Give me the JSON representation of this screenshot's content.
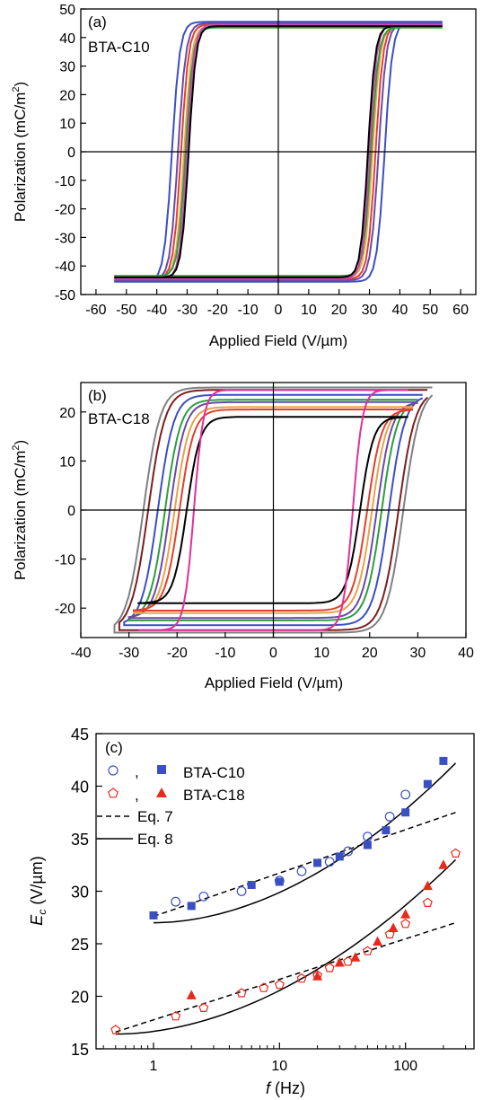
{
  "chart_data": [
    {
      "type": "line",
      "panel_label": "(a)",
      "sample": "BTA-C10",
      "xlabel": "Applied Field (V/µm)",
      "ylabel_main": "Polarization (mC/m",
      "ylabel_sup": "2",
      "ylabel_close": ")",
      "xlim": [
        -65,
        65
      ],
      "ylim": [
        -50,
        50
      ],
      "xticks": [
        -60,
        -50,
        -40,
        -30,
        -20,
        -10,
        0,
        10,
        20,
        30,
        40,
        50,
        60
      ],
      "yticks": [
        -50,
        -40,
        -30,
        -20,
        -10,
        0,
        10,
        20,
        30,
        40,
        50
      ],
      "loops": [
        {
          "color": "#3a4fc2",
          "Ec": 35,
          "Ps": 45.5,
          "w": 2.6,
          "Emax": 54
        },
        {
          "color": "#6a4aa5",
          "Ec": 33,
          "Ps": 45.0,
          "w": 2.6,
          "Emax": 54
        },
        {
          "color": "#e0402f",
          "Ec": 32,
          "Ps": 44.5,
          "w": 2.5,
          "Emax": 54
        },
        {
          "color": "#e8a34a",
          "Ec": 31,
          "Ps": 44.0,
          "w": 2.5,
          "Emax": 54
        },
        {
          "color": "#2e9d3f",
          "Ec": 30.5,
          "Ps": 43.5,
          "w": 2.5,
          "Emax": 54
        },
        {
          "color": "#c94ab0",
          "Ec": 30,
          "Ps": 44.5,
          "w": 2.4,
          "Emax": 54
        },
        {
          "color": "#000000",
          "Ec": 29.5,
          "Ps": 44.0,
          "w": 2.4,
          "Emax": 54
        }
      ]
    },
    {
      "type": "line",
      "panel_label": "(b)",
      "sample": "BTA-C18",
      "xlabel": "Applied Field (V/µm)",
      "ylabel_main": "Polarization (mC/m",
      "ylabel_sup": "2",
      "ylabel_close": ")",
      "xlim": [
        -40,
        40
      ],
      "ylim": [
        -26,
        26
      ],
      "xticks": [
        -40,
        -30,
        -20,
        -10,
        0,
        10,
        20,
        30,
        40
      ],
      "yticks": [
        -20,
        -10,
        0,
        10,
        20
      ],
      "loops": [
        {
          "color": "#808080",
          "Ec": 27,
          "Ps": 25.0,
          "w": 3.5,
          "Emax": 33
        },
        {
          "color": "#7a1f1f",
          "Ec": 26,
          "Ps": 24.5,
          "w": 3.5,
          "Emax": 32
        },
        {
          "color": "#3a4fc2",
          "Ec": 24,
          "Ps": 23.5,
          "w": 3.3,
          "Emax": 31
        },
        {
          "color": "#2e9d3f",
          "Ec": 22.5,
          "Ps": 22.5,
          "w": 3.2,
          "Emax": 30
        },
        {
          "color": "#6a4aa5",
          "Ec": 21.5,
          "Ps": 22.0,
          "w": 3.1,
          "Emax": 30
        },
        {
          "color": "#e8a34a",
          "Ec": 20.5,
          "Ps": 21.0,
          "w": 3.0,
          "Emax": 29
        },
        {
          "color": "#e0402f",
          "Ec": 19.5,
          "Ps": 20.5,
          "w": 3.0,
          "Emax": 29
        },
        {
          "color": "#000000",
          "Ec": 18,
          "Ps": 19.0,
          "w": 2.8,
          "Emax": 28
        },
        {
          "color": "#e0309a",
          "Ec": 16.5,
          "Ps": 24.5,
          "w": 2.0,
          "Emax": 28
        }
      ]
    },
    {
      "type": "scatter",
      "panel_label": "(c)",
      "xlabel_italic": "f",
      "xlabel_rest": " (Hz)",
      "ylabel_italic": "E",
      "ylabel_sub": "c",
      "ylabel_rest": " (V/µm)",
      "xscale": "log",
      "xlim": [
        0.35,
        350
      ],
      "ylim": [
        15,
        45
      ],
      "xticks": [
        1,
        10,
        100
      ],
      "xtick_labels": [
        "1",
        "10",
        "100"
      ],
      "yticks": [
        15,
        20,
        25,
        30,
        35,
        40,
        45
      ],
      "legend": {
        "sep": ",",
        "c10_label": "BTA-C10",
        "c18_label": "BTA-C18",
        "eq7_label": "Eq. 7",
        "eq8_label": "Eq. 8"
      },
      "series": [
        {
          "name": "BTA-C10",
          "marker": "square-filled",
          "color": "#3a4fc2",
          "x": [
            1,
            2,
            6,
            10,
            20,
            30,
            50,
            70,
            100,
            150,
            200
          ],
          "y": [
            27.7,
            28.6,
            30.6,
            30.9,
            32.7,
            33.3,
            34.4,
            35.8,
            37.5,
            40.2,
            42.4
          ]
        },
        {
          "name": "BTA-C10",
          "marker": "circle-open",
          "color": "#3a4fc2",
          "x": [
            1.5,
            2.5,
            5,
            10,
            15,
            25,
            35,
            50,
            75,
            100
          ],
          "y": [
            29.0,
            29.5,
            30.0,
            31.0,
            31.9,
            32.8,
            33.8,
            35.2,
            37.1,
            39.2
          ]
        },
        {
          "name": "BTA-C18",
          "marker": "triangle-filled",
          "color": "#e8291c",
          "x": [
            2,
            20,
            30,
            40,
            60,
            80,
            100,
            150,
            200
          ],
          "y": [
            20.1,
            21.9,
            23.2,
            23.7,
            25.2,
            26.5,
            27.8,
            30.5,
            32.5
          ]
        },
        {
          "name": "BTA-C18",
          "marker": "pentagon-open",
          "color": "#e8291c",
          "x": [
            0.5,
            1.5,
            2.5,
            5,
            7.5,
            10,
            15,
            20,
            25,
            35,
            50,
            75,
            100,
            150,
            250
          ],
          "y": [
            16.8,
            18.1,
            18.9,
            20.3,
            20.8,
            21.1,
            21.7,
            22.0,
            22.7,
            23.3,
            24.3,
            25.9,
            26.9,
            28.9,
            33.6
          ]
        }
      ],
      "fits": [
        {
          "name": "Eq. 7",
          "style": "dashed",
          "x0": 1,
          "x1": 250,
          "y0": 27.6,
          "y1": 37.5
        },
        {
          "name": "Eq. 8",
          "style": "solid",
          "x0": 1,
          "x1": 250,
          "y0": 27.0,
          "y1": 42.2
        },
        {
          "name": "Eq. 7",
          "style": "dashed",
          "x0": 0.5,
          "x1": 250,
          "y0": 16.6,
          "y1": 27.0
        },
        {
          "name": "Eq. 8",
          "style": "solid",
          "x0": 0.5,
          "x1": 250,
          "y0": 16.4,
          "y1": 33.0
        }
      ]
    }
  ]
}
